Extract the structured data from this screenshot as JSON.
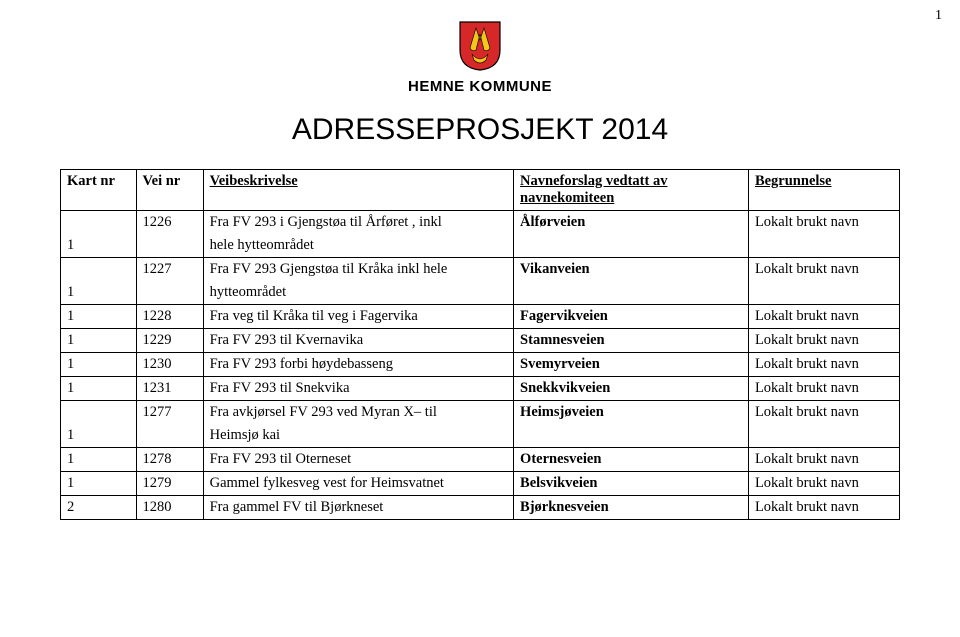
{
  "page_number": "1",
  "header": {
    "kommune": "HEMNE KOMMUNE",
    "title": "ADRESSEPROSJEKT 2014",
    "crest_colors": {
      "red": "#d62828",
      "yellow": "#f5c518",
      "border": "#000000"
    }
  },
  "columns": {
    "c1": "Kart nr",
    "c2": "Vei nr",
    "c3": "Veibeskrivelse",
    "c4": "Navneforslag vedtatt av navnekomiteen",
    "c5": "Begrunnelse"
  },
  "rows": [
    {
      "kart": "1",
      "vei": "1226",
      "besk_top": "Fra FV 293 i Gjengstøa til Årføret , inkl",
      "besk_bot": "hele hytteområdet",
      "navn": "Ålførveien",
      "begr": "Lokalt brukt navn",
      "split": true
    },
    {
      "kart": "1",
      "vei": "1227",
      "besk_top": "Fra FV 293 Gjengstøa til Kråka inkl hele",
      "besk_bot": "hytteområdet",
      "navn": "Vikanveien",
      "begr": "Lokalt brukt navn",
      "split": true
    },
    {
      "kart": "1",
      "vei": "1228",
      "besk": "Fra veg til Kråka til veg i Fagervika",
      "navn": "Fagervikveien",
      "begr": "Lokalt brukt navn"
    },
    {
      "kart": "1",
      "vei": "1229",
      "besk": "Fra FV 293 til Kvernavika",
      "navn": "Stamnesveien",
      "begr": "Lokalt brukt navn"
    },
    {
      "kart": "1",
      "vei": "1230",
      "besk": "Fra FV 293 forbi høydebasseng",
      "navn": "Svemyrveien",
      "begr": "Lokalt brukt navn"
    },
    {
      "kart": "1",
      "vei": "1231",
      "besk": "Fra FV 293 til Snekvika",
      "navn": "Snekkvikveien",
      "begr": "Lokalt brukt navn"
    },
    {
      "kart": "1",
      "vei": "1277",
      "besk_top": "Fra avkjørsel FV 293 ved Myran  X– til",
      "besk_bot": "Heimsjø kai",
      "navn": "Heimsjøveien",
      "begr": "Lokalt brukt navn",
      "split": true
    },
    {
      "kart": "1",
      "vei": "1278",
      "besk": "Fra FV 293 til Oterneset",
      "navn": "Oternesveien",
      "begr": "Lokalt brukt navn"
    },
    {
      "kart": "1",
      "vei": "1279",
      "besk": "Gammel fylkesveg vest for Heimsvatnet",
      "navn": "Belsvikveien",
      "begr": "Lokalt brukt navn"
    },
    {
      "kart": "2",
      "vei": "1280",
      "besk": "Fra gammel FV  til Bjørkneset",
      "navn": "Bjørknesveien",
      "begr": "Lokalt brukt navn"
    }
  ]
}
